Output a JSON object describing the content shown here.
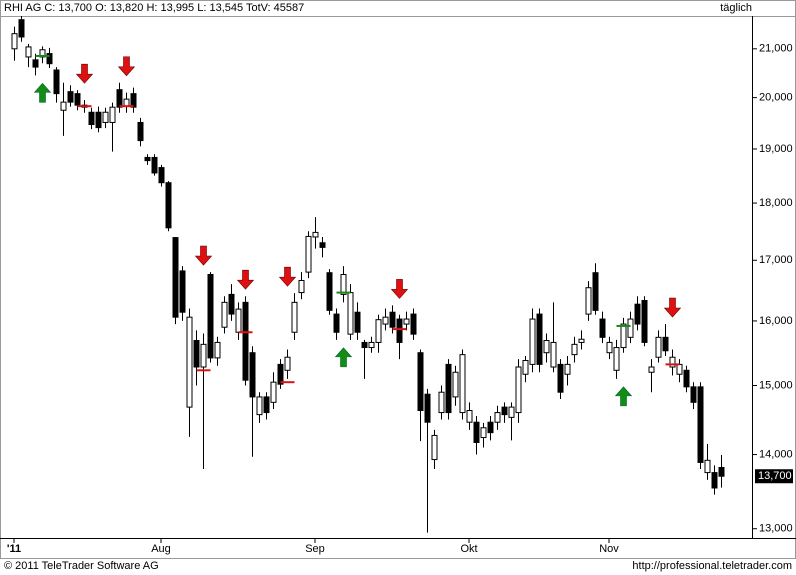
{
  "chart_data": {
    "type": "candlestick",
    "title": "RHI AG C: 13,700 O: 13,820 H: 13,995 L: 13,545 TotV: 45587",
    "period": "täglich",
    "copyright": "© 2011 TeleTrader Software AG",
    "source_url": "http://professional.teletrader.com",
    "log_scale": true,
    "up_color": "#ffffff",
    "down_color": "#000000",
    "sell_color": "#e01010",
    "buy_color": "#148c14",
    "ylim": [
      12880,
      21700
    ],
    "yticks": [
      {
        "value": 13000,
        "label": "13,000"
      },
      {
        "value": 14000,
        "label": "14,000"
      },
      {
        "value": 15000,
        "label": "15,000"
      },
      {
        "value": 16000,
        "label": "16,000"
      },
      {
        "value": 17000,
        "label": "17,000"
      },
      {
        "value": 18000,
        "label": "18,000"
      },
      {
        "value": 19000,
        "label": "19,000"
      },
      {
        "value": 20000,
        "label": "20,000"
      },
      {
        "value": 21000,
        "label": "21,000"
      }
    ],
    "xticks": [
      {
        "value": 0,
        "label": "'11"
      },
      {
        "value": 21,
        "label": "Aug"
      },
      {
        "value": 43,
        "label": "Sep"
      },
      {
        "value": 65,
        "label": "Okt"
      },
      {
        "value": 85,
        "label": "Nov"
      }
    ],
    "last_price": {
      "value": 13700,
      "label": "13,700"
    },
    "candles": {
      "open": [
        21000,
        21620,
        20830,
        20770,
        20830,
        20900,
        20560,
        19750,
        20120,
        20080,
        19810,
        19710,
        19710,
        19510,
        19510,
        20160,
        19830,
        20080,
        19510,
        18840,
        18840,
        18650,
        18370,
        17390,
        16820,
        14680,
        15690,
        15280,
        16760,
        15420,
        15900,
        16430,
        15820,
        16300,
        15500,
        14570,
        14830,
        14750,
        15320,
        15230,
        15820,
        16460,
        16800,
        17400,
        17300,
        16790,
        16110,
        16430,
        15790,
        16140,
        15660,
        15580,
        15660,
        15950,
        16140,
        16030,
        15950,
        16110,
        15500,
        14870,
        13930,
        14600,
        15320,
        14830,
        14600,
        14460,
        14460,
        14240,
        14460,
        14460,
        14680,
        14530,
        14600,
        15170,
        15320,
        16110,
        15500,
        15280,
        15320,
        15170,
        15470,
        15660,
        16110,
        16790,
        16030,
        15500,
        15230,
        15580,
        15740,
        16270,
        16330,
        15200,
        15430,
        15740,
        15280,
        15170,
        15230,
        14980,
        14980,
        13750,
        13750,
        13820
      ],
      "high": [
        21470,
        21700,
        21100,
        20900,
        21050,
        21020,
        20620,
        20300,
        20250,
        20150,
        19950,
        19800,
        19820,
        19800,
        19900,
        20300,
        20100,
        20200,
        19600,
        18900,
        18900,
        18700,
        18400,
        17400,
        16900,
        16200,
        15850,
        15800,
        16800,
        15750,
        16400,
        16600,
        16300,
        16400,
        15600,
        14900,
        14900,
        15200,
        15400,
        15550,
        16450,
        16800,
        17500,
        17750,
        17400,
        16850,
        16200,
        16900,
        16600,
        16300,
        15700,
        15750,
        16100,
        16200,
        16250,
        16100,
        16150,
        16200,
        15550,
        14950,
        14350,
        15000,
        15400,
        15300,
        15550,
        14750,
        14550,
        14450,
        14550,
        14700,
        14750,
        14750,
        15400,
        15450,
        16200,
        16200,
        15800,
        16300,
        15400,
        15450,
        15750,
        15850,
        16650,
        16950,
        16150,
        15750,
        15700,
        16050,
        16150,
        16400,
        16400,
        15400,
        15850,
        15950,
        15550,
        15400,
        15300,
        15050,
        15050,
        14150,
        13850,
        13995
      ],
      "low": [
        20750,
        21150,
        20620,
        20450,
        20700,
        20600,
        19900,
        19250,
        19820,
        19750,
        19700,
        19380,
        19320,
        19400,
        18950,
        19700,
        19700,
        19700,
        19050,
        18700,
        18500,
        18300,
        17500,
        15950,
        16000,
        14250,
        15000,
        13800,
        15350,
        15300,
        15800,
        16000,
        15700,
        15000,
        13970,
        14450,
        14500,
        14650,
        14950,
        15100,
        15700,
        16350,
        16700,
        17200,
        17050,
        16100,
        15700,
        16300,
        15700,
        15700,
        15100,
        15500,
        15500,
        15850,
        15800,
        15400,
        15850,
        15700,
        14190,
        12950,
        13800,
        14500,
        14500,
        14700,
        14500,
        14350,
        14000,
        14100,
        14200,
        14350,
        14450,
        14200,
        14450,
        15050,
        15200,
        15200,
        15350,
        15200,
        14800,
        15000,
        15350,
        15550,
        16000,
        16100,
        15650,
        15400,
        15100,
        15500,
        15650,
        15850,
        15600,
        14900,
        15350,
        15450,
        15150,
        15050,
        14900,
        14650,
        13800,
        13650,
        13450,
        13545
      ],
      "close": [
        21320,
        21250,
        21040,
        20620,
        20980,
        20690,
        20080,
        19910,
        19910,
        19850,
        19850,
        19470,
        19410,
        19710,
        19810,
        19810,
        19970,
        19810,
        19160,
        18780,
        18550,
        18370,
        17560,
        16060,
        16140,
        16060,
        15280,
        15630,
        15420,
        15660,
        16300,
        16110,
        16190,
        15080,
        14830,
        14830,
        14600,
        15050,
        15020,
        15430,
        16300,
        16660,
        17410,
        17480,
        17220,
        16170,
        15820,
        16760,
        16460,
        15820,
        15580,
        15660,
        16020,
        16060,
        15900,
        15660,
        16030,
        15790,
        14630,
        14460,
        14270,
        14900,
        14600,
        15200,
        15470,
        14630,
        14170,
        14380,
        14310,
        14600,
        14570,
        14680,
        15280,
        15380,
        16030,
        15320,
        15690,
        15660,
        14900,
        15320,
        15630,
        15710,
        16540,
        16170,
        15740,
        15660,
        15580,
        15950,
        16030,
        15950,
        15660,
        15280,
        15740,
        15530,
        15430,
        15320,
        14980,
        14750,
        13890,
        13920,
        13540,
        13700
      ]
    },
    "signals": [
      {
        "index": 4,
        "dir": "up",
        "level": 20850
      },
      {
        "index": 10,
        "dir": "down",
        "level": 19830
      },
      {
        "index": 16,
        "dir": "down",
        "level": 19830
      },
      {
        "index": 27,
        "dir": "down",
        "level": 15230
      },
      {
        "index": 33,
        "dir": "down",
        "level": 15820
      },
      {
        "index": 39,
        "dir": "down",
        "level": 15050
      },
      {
        "index": 47,
        "dir": "up",
        "level": 16460
      },
      {
        "index": 55,
        "dir": "down",
        "level": 15870
      },
      {
        "index": 87,
        "dir": "up",
        "level": 15920
      },
      {
        "index": 94,
        "dir": "down",
        "level": 15320
      }
    ]
  }
}
